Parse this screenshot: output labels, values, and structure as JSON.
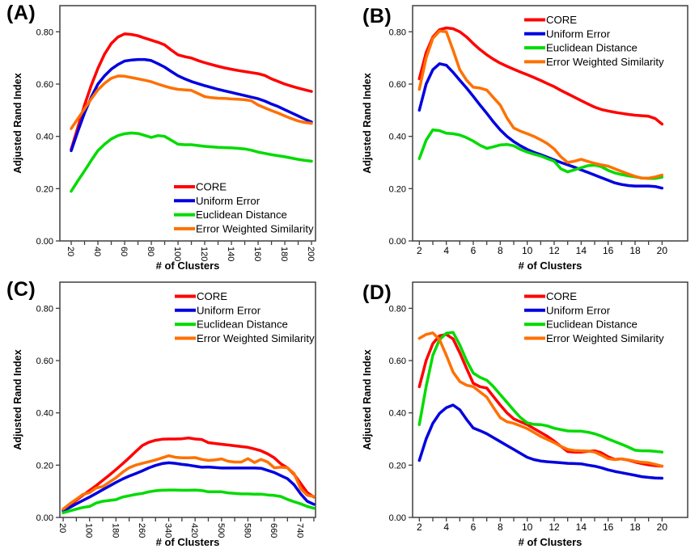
{
  "figure": {
    "background": "#ffffff",
    "axis_color": "#3f3f3f",
    "legend_labels": [
      "CORE",
      "Uniform Error",
      "Euclidean Distance",
      "Error Weighted Similarity"
    ],
    "series_colors": {
      "CORE": "#ff0000",
      "Uniform Error": "#0000e0",
      "Euclidean Distance": "#00db00",
      "Error Weighted Similarity": "#ff7000"
    }
  },
  "chart_data": [
    {
      "id": "A",
      "label": "(A)",
      "type": "line",
      "xlabel": "# of Clusters",
      "ylabel": "Adjusted Rand Index",
      "xlim": [
        11.5,
        203
      ],
      "ylim": [
        0,
        0.9
      ],
      "y_ticks": [
        0,
        0.2,
        0.4,
        0.6,
        0.8
      ],
      "x_ticks_labeled": [
        20,
        40,
        60,
        80,
        100,
        120,
        140,
        160,
        180,
        200
      ],
      "x_tick_minor_step": 10,
      "x_tick_minor_end": 200,
      "x_tick_label_rotation": 90,
      "legend_position": "inside-bottom-right",
      "grid": false,
      "x": [
        20,
        25,
        30,
        35,
        40,
        45,
        50,
        55,
        60,
        65,
        70,
        75,
        80,
        85,
        90,
        95,
        100,
        105,
        110,
        115,
        120,
        125,
        130,
        135,
        140,
        145,
        150,
        155,
        160,
        165,
        170,
        175,
        180,
        185,
        190,
        195,
        200
      ],
      "series": [
        {
          "name": "CORE",
          "color": "#ff0000",
          "y": [
            0.35,
            0.435,
            0.52,
            0.595,
            0.66,
            0.715,
            0.755,
            0.78,
            0.792,
            0.79,
            0.785,
            0.776,
            0.768,
            0.76,
            0.75,
            0.73,
            0.712,
            0.705,
            0.7,
            0.69,
            0.682,
            0.675,
            0.668,
            0.662,
            0.657,
            0.652,
            0.648,
            0.644,
            0.64,
            0.633,
            0.62,
            0.61,
            0.6,
            0.592,
            0.585,
            0.578,
            0.572
          ]
        },
        {
          "name": "Uniform Error",
          "color": "#0000e0",
          "y": [
            0.345,
            0.42,
            0.49,
            0.55,
            0.6,
            0.632,
            0.657,
            0.675,
            0.688,
            0.692,
            0.694,
            0.694,
            0.69,
            0.678,
            0.665,
            0.648,
            0.632,
            0.62,
            0.61,
            0.602,
            0.594,
            0.587,
            0.58,
            0.574,
            0.568,
            0.562,
            0.556,
            0.55,
            0.544,
            0.535,
            0.524,
            0.514,
            0.502,
            0.49,
            0.478,
            0.466,
            0.455
          ]
        },
        {
          "name": "Euclidean Distance",
          "color": "#00db00",
          "y": [
            0.19,
            0.23,
            0.268,
            0.308,
            0.345,
            0.37,
            0.39,
            0.403,
            0.41,
            0.413,
            0.411,
            0.404,
            0.396,
            0.403,
            0.4,
            0.385,
            0.37,
            0.368,
            0.368,
            0.365,
            0.362,
            0.36,
            0.358,
            0.357,
            0.356,
            0.354,
            0.352,
            0.347,
            0.34,
            0.335,
            0.33,
            0.326,
            0.322,
            0.317,
            0.312,
            0.308,
            0.305
          ]
        },
        {
          "name": "Error Weighted Similarity",
          "color": "#ff7000",
          "y": [
            0.43,
            0.468,
            0.505,
            0.543,
            0.578,
            0.603,
            0.622,
            0.631,
            0.63,
            0.625,
            0.62,
            0.615,
            0.609,
            0.6,
            0.592,
            0.585,
            0.58,
            0.578,
            0.576,
            0.564,
            0.552,
            0.548,
            0.546,
            0.545,
            0.543,
            0.542,
            0.54,
            0.536,
            0.52,
            0.509,
            0.499,
            0.489,
            0.478,
            0.468,
            0.459,
            0.453,
            0.45
          ]
        }
      ]
    },
    {
      "id": "B",
      "label": "(B)",
      "type": "line",
      "xlabel": "# of Clusters",
      "ylabel": "Adjusted Rand Index",
      "xlim": [
        1.5,
        21.9
      ],
      "ylim": [
        0,
        0.9
      ],
      "y_ticks": [
        0,
        0.2,
        0.4,
        0.6,
        0.8
      ],
      "x_ticks_labeled": [
        2,
        4,
        6,
        8,
        10,
        12,
        14,
        16,
        18,
        20
      ],
      "x_tick_minor_step": 1,
      "x_tick_minor_end": 20,
      "x_tick_label_rotation": 0,
      "legend_position": "inside-top-right",
      "grid": false,
      "x": [
        2,
        2.5,
        3,
        3.5,
        4,
        4.5,
        5,
        5.5,
        6,
        6.5,
        7,
        7.5,
        8,
        8.5,
        9,
        9.5,
        10,
        10.5,
        11,
        11.5,
        12,
        12.5,
        13,
        13.5,
        14,
        14.5,
        15,
        15.5,
        16,
        16.5,
        17,
        17.5,
        18,
        18.5,
        19,
        19.5,
        20
      ],
      "series": [
        {
          "name": "CORE",
          "color": "#ff0000",
          "y": [
            0.62,
            0.72,
            0.78,
            0.808,
            0.815,
            0.812,
            0.8,
            0.78,
            0.755,
            0.732,
            0.712,
            0.695,
            0.68,
            0.668,
            0.657,
            0.646,
            0.636,
            0.625,
            0.614,
            0.602,
            0.59,
            0.576,
            0.563,
            0.55,
            0.537,
            0.524,
            0.512,
            0.503,
            0.497,
            0.492,
            0.488,
            0.484,
            0.481,
            0.479,
            0.477,
            0.468,
            0.447
          ]
        },
        {
          "name": "Uniform Error",
          "color": "#0000e0",
          "y": [
            0.5,
            0.6,
            0.655,
            0.678,
            0.672,
            0.645,
            0.615,
            0.585,
            0.553,
            0.52,
            0.488,
            0.455,
            0.425,
            0.4,
            0.38,
            0.364,
            0.35,
            0.339,
            0.33,
            0.32,
            0.31,
            0.3,
            0.291,
            0.282,
            0.272,
            0.262,
            0.252,
            0.242,
            0.232,
            0.222,
            0.216,
            0.212,
            0.21,
            0.21,
            0.21,
            0.208,
            0.202
          ]
        },
        {
          "name": "Euclidean Distance",
          "color": "#00db00",
          "y": [
            0.315,
            0.385,
            0.425,
            0.422,
            0.412,
            0.41,
            0.405,
            0.395,
            0.382,
            0.366,
            0.354,
            0.36,
            0.367,
            0.369,
            0.364,
            0.35,
            0.34,
            0.332,
            0.325,
            0.315,
            0.305,
            0.276,
            0.264,
            0.272,
            0.28,
            0.288,
            0.29,
            0.284,
            0.27,
            0.26,
            0.254,
            0.249,
            0.245,
            0.241,
            0.239,
            0.239,
            0.244
          ]
        },
        {
          "name": "Error Weighted Similarity",
          "color": "#ff7000",
          "y": [
            0.58,
            0.7,
            0.775,
            0.803,
            0.8,
            0.73,
            0.655,
            0.615,
            0.588,
            0.585,
            0.577,
            0.548,
            0.52,
            0.47,
            0.432,
            0.42,
            0.41,
            0.4,
            0.387,
            0.372,
            0.352,
            0.322,
            0.3,
            0.305,
            0.312,
            0.304,
            0.297,
            0.291,
            0.286,
            0.276,
            0.266,
            0.256,
            0.247,
            0.24,
            0.24,
            0.245,
            0.252
          ]
        }
      ]
    },
    {
      "id": "C",
      "label": "(C)",
      "type": "line",
      "xlabel": "# of Clusters",
      "ylabel": "Adjusted Rand Index",
      "xlim": [
        10,
        785
      ],
      "ylim": [
        0,
        0.9
      ],
      "y_ticks": [
        0,
        0.2,
        0.4,
        0.6,
        0.8
      ],
      "x_ticks_labeled": [
        20,
        100,
        180,
        260,
        340,
        420,
        500,
        580,
        660,
        740
      ],
      "x_tick_minor_step": 40,
      "x_tick_minor_end": 780,
      "x_tick_label_rotation": 90,
      "legend_position": "inside-top-right",
      "grid": false,
      "x": [
        20,
        40,
        60,
        80,
        100,
        120,
        140,
        160,
        180,
        200,
        220,
        240,
        260,
        280,
        300,
        320,
        340,
        360,
        380,
        400,
        420,
        440,
        460,
        480,
        500,
        520,
        540,
        560,
        580,
        600,
        620,
        640,
        660,
        680,
        700,
        720,
        740,
        760,
        780
      ],
      "series": [
        {
          "name": "CORE",
          "color": "#ff0000",
          "y": [
            0.03,
            0.048,
            0.066,
            0.085,
            0.103,
            0.122,
            0.142,
            0.162,
            0.183,
            0.205,
            0.228,
            0.252,
            0.275,
            0.288,
            0.295,
            0.299,
            0.3,
            0.3,
            0.301,
            0.304,
            0.3,
            0.298,
            0.286,
            0.283,
            0.28,
            0.277,
            0.274,
            0.271,
            0.268,
            0.262,
            0.255,
            0.243,
            0.228,
            0.205,
            0.19,
            0.165,
            0.13,
            0.095,
            0.078
          ]
        },
        {
          "name": "Uniform Error",
          "color": "#0000e0",
          "y": [
            0.025,
            0.038,
            0.052,
            0.065,
            0.078,
            0.092,
            0.106,
            0.12,
            0.134,
            0.147,
            0.158,
            0.168,
            0.178,
            0.19,
            0.199,
            0.206,
            0.209,
            0.207,
            0.203,
            0.2,
            0.196,
            0.192,
            0.193,
            0.191,
            0.189,
            0.189,
            0.189,
            0.189,
            0.189,
            0.189,
            0.188,
            0.18,
            0.172,
            0.16,
            0.148,
            0.125,
            0.09,
            0.062,
            0.05
          ]
        },
        {
          "name": "Euclidean Distance",
          "color": "#00db00",
          "y": [
            0.018,
            0.025,
            0.032,
            0.038,
            0.042,
            0.055,
            0.062,
            0.065,
            0.068,
            0.078,
            0.083,
            0.088,
            0.092,
            0.098,
            0.102,
            0.104,
            0.105,
            0.105,
            0.104,
            0.104,
            0.105,
            0.103,
            0.098,
            0.098,
            0.098,
            0.094,
            0.092,
            0.09,
            0.09,
            0.089,
            0.089,
            0.086,
            0.084,
            0.08,
            0.069,
            0.06,
            0.052,
            0.042,
            0.035
          ]
        },
        {
          "name": "Error Weighted Similarity",
          "color": "#ff7000",
          "y": [
            0.032,
            0.052,
            0.07,
            0.088,
            0.095,
            0.113,
            0.118,
            0.135,
            0.152,
            0.173,
            0.19,
            0.2,
            0.207,
            0.213,
            0.22,
            0.228,
            0.236,
            0.23,
            0.228,
            0.228,
            0.229,
            0.222,
            0.218,
            0.22,
            0.224,
            0.215,
            0.212,
            0.212,
            0.225,
            0.21,
            0.222,
            0.212,
            0.19,
            0.192,
            0.19,
            0.168,
            0.11,
            0.085,
            0.08
          ]
        }
      ]
    },
    {
      "id": "D",
      "label": "(D)",
      "type": "line",
      "xlabel": "# of Clusters",
      "ylabel": "Adjusted Rand Index",
      "xlim": [
        1.5,
        21.9
      ],
      "ylim": [
        0,
        0.9
      ],
      "y_ticks": [
        0,
        0.2,
        0.4,
        0.6,
        0.8
      ],
      "x_ticks_labeled": [
        2,
        4,
        6,
        8,
        10,
        12,
        14,
        16,
        18,
        20
      ],
      "x_tick_minor_step": 1,
      "x_tick_minor_end": 20,
      "x_tick_label_rotation": 0,
      "legend_position": "inside-top-right",
      "grid": false,
      "x": [
        2,
        2.5,
        3,
        3.5,
        4,
        4.5,
        5,
        5.5,
        6,
        6.5,
        7,
        7.5,
        8,
        8.5,
        9,
        9.5,
        10,
        10.5,
        11,
        11.5,
        12,
        12.5,
        13,
        13.5,
        14,
        14.5,
        15,
        15.5,
        16,
        16.5,
        17,
        17.5,
        18,
        18.5,
        19,
        19.5,
        20
      ],
      "series": [
        {
          "name": "CORE",
          "color": "#ff0000",
          "y": [
            0.5,
            0.6,
            0.665,
            0.695,
            0.7,
            0.683,
            0.63,
            0.57,
            0.513,
            0.5,
            0.495,
            0.462,
            0.43,
            0.4,
            0.377,
            0.366,
            0.355,
            0.34,
            0.325,
            0.31,
            0.292,
            0.272,
            0.252,
            0.25,
            0.25,
            0.253,
            0.255,
            0.247,
            0.232,
            0.222,
            0.224,
            0.219,
            0.212,
            0.206,
            0.201,
            0.198,
            0.196
          ]
        },
        {
          "name": "Uniform Error",
          "color": "#0000e0",
          "y": [
            0.218,
            0.3,
            0.36,
            0.398,
            0.42,
            0.43,
            0.412,
            0.375,
            0.342,
            0.332,
            0.32,
            0.305,
            0.29,
            0.275,
            0.26,
            0.245,
            0.23,
            0.221,
            0.216,
            0.213,
            0.211,
            0.209,
            0.207,
            0.206,
            0.205,
            0.2,
            0.196,
            0.19,
            0.182,
            0.176,
            0.171,
            0.166,
            0.161,
            0.156,
            0.153,
            0.151,
            0.15
          ]
        },
        {
          "name": "Euclidean Distance",
          "color": "#00db00",
          "y": [
            0.355,
            0.5,
            0.62,
            0.68,
            0.705,
            0.708,
            0.66,
            0.6,
            0.552,
            0.536,
            0.525,
            0.5,
            0.47,
            0.44,
            0.41,
            0.382,
            0.362,
            0.356,
            0.355,
            0.35,
            0.341,
            0.336,
            0.331,
            0.33,
            0.33,
            0.326,
            0.32,
            0.311,
            0.3,
            0.29,
            0.28,
            0.269,
            0.257,
            0.255,
            0.255,
            0.253,
            0.25
          ]
        },
        {
          "name": "Error Weighted Similarity",
          "color": "#ff7000",
          "y": [
            0.685,
            0.7,
            0.706,
            0.68,
            0.62,
            0.556,
            0.52,
            0.506,
            0.5,
            0.48,
            0.46,
            0.42,
            0.382,
            0.366,
            0.36,
            0.35,
            0.34,
            0.325,
            0.31,
            0.298,
            0.286,
            0.272,
            0.26,
            0.256,
            0.255,
            0.254,
            0.25,
            0.238,
            0.225,
            0.221,
            0.224,
            0.22,
            0.215,
            0.211,
            0.209,
            0.203,
            0.196
          ]
        }
      ]
    }
  ]
}
